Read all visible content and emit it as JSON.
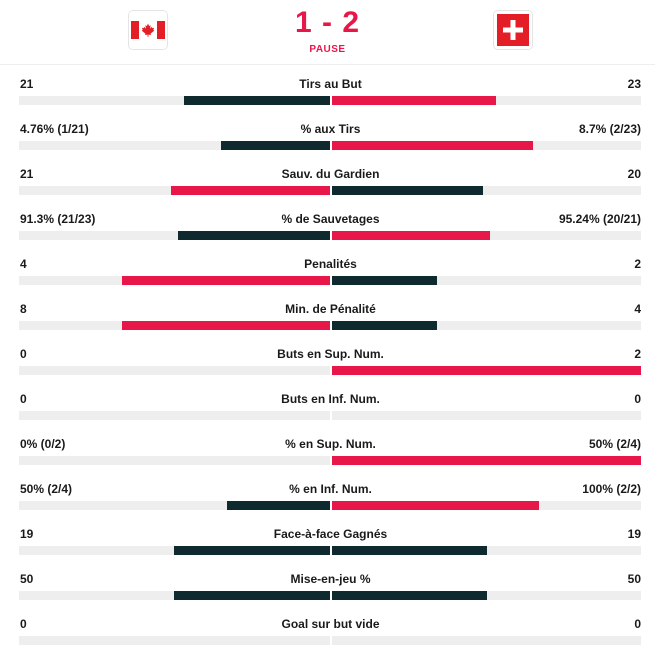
{
  "match": {
    "home_flag": "canada-flag-icon",
    "away_flag": "switzerland-flag-icon",
    "score": "1 - 2",
    "status": "PAUSE"
  },
  "colors": {
    "accent": "#e8174a",
    "dark": "#0f2a2e",
    "track": "#eeeeee"
  },
  "stats": [
    {
      "label": "Tirs au But",
      "home": "21",
      "away": "23",
      "home_share": 0.47,
      "away_share": 0.53,
      "leader": "away"
    },
    {
      "label": "% aux Tirs",
      "home": "4.76% (1/21)",
      "away": "8.7% (2/23)",
      "home_share": 0.35,
      "away_share": 0.65,
      "leader": "away"
    },
    {
      "label": "Sauv. du Gardien",
      "home": "21",
      "away": "20",
      "home_share": 0.51,
      "away_share": 0.49,
      "leader": "home"
    },
    {
      "label": "% de Sauvetages",
      "home": "91.3% (21/23)",
      "away": "95.24% (20/21)",
      "home_share": 0.49,
      "away_share": 0.51,
      "leader": "away"
    },
    {
      "label": "Penalités",
      "home": "4",
      "away": "2",
      "home_share": 0.67,
      "away_share": 0.34,
      "leader": "home"
    },
    {
      "label": "Min. de Pénalité",
      "home": "8",
      "away": "4",
      "home_share": 0.67,
      "away_share": 0.34,
      "leader": "home"
    },
    {
      "label": "Buts en Sup. Num.",
      "home": "0",
      "away": "2",
      "home_share": 0,
      "away_share": 1,
      "leader": "away"
    },
    {
      "label": "Buts en Inf. Num.",
      "home": "0",
      "away": "0",
      "home_share": 0,
      "away_share": 0,
      "leader": "none"
    },
    {
      "label": "% en Sup. Num.",
      "home": "0% (0/2)",
      "away": "50% (2/4)",
      "home_share": 0,
      "away_share": 1,
      "leader": "away"
    },
    {
      "label": "% en Inf. Num.",
      "home": "50% (2/4)",
      "away": "100% (2/2)",
      "home_share": 0.33,
      "away_share": 0.67,
      "leader": "away"
    },
    {
      "label": "Face-à-face Gagnés",
      "home": "19",
      "away": "19",
      "home_share": 0.5,
      "away_share": 0.5,
      "leader": "tie"
    },
    {
      "label": "Mise-en-jeu %",
      "home": "50",
      "away": "50",
      "home_share": 0.5,
      "away_share": 0.5,
      "leader": "tie"
    },
    {
      "label": "Goal sur but vide",
      "home": "0",
      "away": "0",
      "home_share": 0,
      "away_share": 0,
      "leader": "none"
    }
  ]
}
